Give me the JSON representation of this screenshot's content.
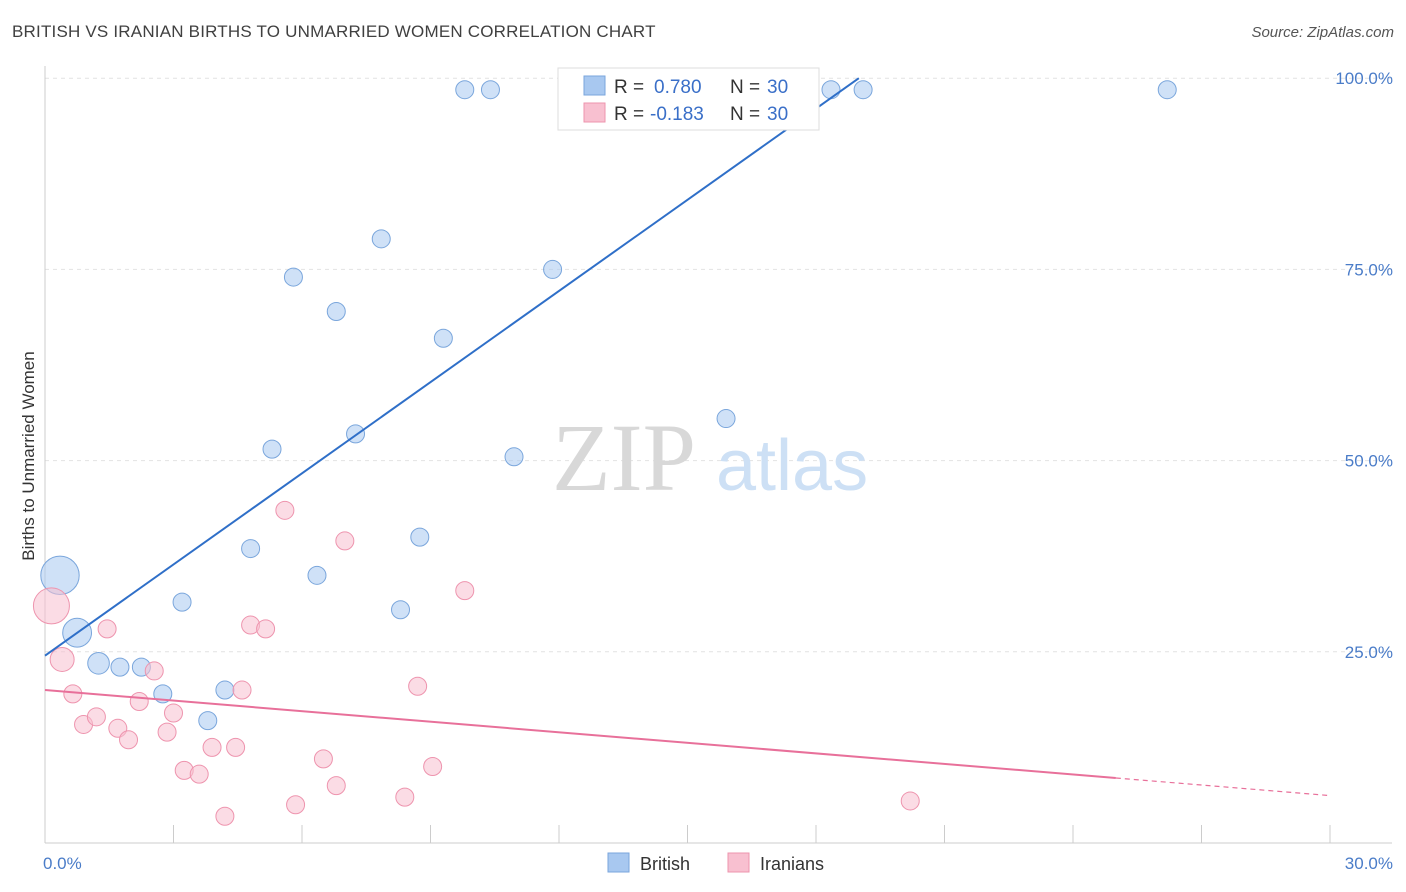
{
  "title": "BRITISH VS IRANIAN BIRTHS TO UNMARRIED WOMEN CORRELATION CHART",
  "source": "Source: ZipAtlas.com",
  "watermark": {
    "zip": "ZIP",
    "atlas": "atlas"
  },
  "chart_data": {
    "type": "scatter",
    "title": "BRITISH VS IRANIAN BIRTHS TO UNMARRIED WOMEN CORRELATION CHART",
    "xlabel": "",
    "ylabel": "Births to Unmarried Women",
    "xlim": [
      0,
      30
    ],
    "ylim": [
      0,
      105
    ],
    "x_tick_labels": [
      "0.0%",
      "30.0%"
    ],
    "y_ticks": [
      25,
      50,
      75,
      100
    ],
    "y_tick_labels": [
      "25.0%",
      "50.0%",
      "75.0%",
      "100.0%"
    ],
    "grid": true,
    "legend_placement": "top-center",
    "series": [
      {
        "name": "British",
        "color": "#a8c8f0",
        "edge_color": "#7aa6dc",
        "line_color": "#2f6fc8",
        "r_label": "R = ",
        "r_value": "0.780",
        "n_label": "N = ",
        "n_value": "30",
        "trend": {
          "x0": 0.0,
          "y0": 24.5,
          "x1": 19.0,
          "y1": 100.0
        },
        "points": [
          {
            "x": 0.35,
            "y": 35.0,
            "size": 3.2
          },
          {
            "x": 0.75,
            "y": 27.5,
            "size": 2.4
          },
          {
            "x": 1.25,
            "y": 23.5,
            "size": 1.8
          },
          {
            "x": 1.75,
            "y": 23.0,
            "size": 1.5
          },
          {
            "x": 2.25,
            "y": 23.0,
            "size": 1.5
          },
          {
            "x": 2.75,
            "y": 19.5,
            "size": 1.5
          },
          {
            "x": 3.2,
            "y": 31.5,
            "size": 1.5
          },
          {
            "x": 3.8,
            "y": 16.0,
            "size": 1.5
          },
          {
            "x": 4.2,
            "y": 20.0,
            "size": 1.5
          },
          {
            "x": 4.8,
            "y": 38.5,
            "size": 1.5
          },
          {
            "x": 5.3,
            "y": 51.5,
            "size": 1.5
          },
          {
            "x": 5.8,
            "y": 74.0,
            "size": 1.5
          },
          {
            "x": 6.35,
            "y": 35.0,
            "size": 1.5
          },
          {
            "x": 6.8,
            "y": 69.5,
            "size": 1.5
          },
          {
            "x": 7.25,
            "y": 53.5,
            "size": 1.5
          },
          {
            "x": 7.85,
            "y": 79.0,
            "size": 1.5
          },
          {
            "x": 8.3,
            "y": 30.5,
            "size": 1.5
          },
          {
            "x": 8.75,
            "y": 40.0,
            "size": 1.5
          },
          {
            "x": 9.3,
            "y": 66.0,
            "size": 1.5
          },
          {
            "x": 9.8,
            "y": 98.5,
            "size": 1.5
          },
          {
            "x": 10.4,
            "y": 98.5,
            "size": 1.5
          },
          {
            "x": 10.95,
            "y": 50.5,
            "size": 1.5
          },
          {
            "x": 11.85,
            "y": 75.0,
            "size": 1.5
          },
          {
            "x": 12.5,
            "y": 98.5,
            "size": 1.5
          },
          {
            "x": 13.0,
            "y": 98.5,
            "size": 1.5
          },
          {
            "x": 14.35,
            "y": 98.5,
            "size": 1.5
          },
          {
            "x": 15.9,
            "y": 55.5,
            "size": 1.5
          },
          {
            "x": 18.35,
            "y": 98.5,
            "size": 1.5
          },
          {
            "x": 19.1,
            "y": 98.5,
            "size": 1.5
          },
          {
            "x": 26.2,
            "y": 98.5,
            "size": 1.5
          }
        ]
      },
      {
        "name": "Iranians",
        "color": "#f8c0d0",
        "edge_color": "#ee94ae",
        "line_color": "#e8709a",
        "r_label": "R = ",
        "r_value": "-0.183",
        "n_label": "N = ",
        "n_value": "30",
        "trend": {
          "x0": 0.0,
          "y0": 20.0,
          "x1": 25.0,
          "y1": 8.5
        },
        "trend_dashed": {
          "x0": 25.0,
          "y0": 8.5,
          "x1": 30.0,
          "y1": 6.2
        },
        "points": [
          {
            "x": 0.15,
            "y": 31.0,
            "size": 3.0
          },
          {
            "x": 0.4,
            "y": 24.0,
            "size": 2.0
          },
          {
            "x": 0.65,
            "y": 19.5,
            "size": 1.5
          },
          {
            "x": 0.9,
            "y": 15.5,
            "size": 1.5
          },
          {
            "x": 1.2,
            "y": 16.5,
            "size": 1.5
          },
          {
            "x": 1.45,
            "y": 28.0,
            "size": 1.5
          },
          {
            "x": 1.7,
            "y": 15.0,
            "size": 1.5
          },
          {
            "x": 1.95,
            "y": 13.5,
            "size": 1.5
          },
          {
            "x": 2.2,
            "y": 18.5,
            "size": 1.5
          },
          {
            "x": 2.55,
            "y": 22.5,
            "size": 1.5
          },
          {
            "x": 2.85,
            "y": 14.5,
            "size": 1.5
          },
          {
            "x": 3.0,
            "y": 17.0,
            "size": 1.5
          },
          {
            "x": 3.25,
            "y": 9.5,
            "size": 1.5
          },
          {
            "x": 3.6,
            "y": 9.0,
            "size": 1.5
          },
          {
            "x": 3.9,
            "y": 12.5,
            "size": 1.5
          },
          {
            "x": 4.2,
            "y": 3.5,
            "size": 1.5
          },
          {
            "x": 4.45,
            "y": 12.5,
            "size": 1.5
          },
          {
            "x": 4.6,
            "y": 20.0,
            "size": 1.5
          },
          {
            "x": 4.8,
            "y": 28.5,
            "size": 1.5
          },
          {
            "x": 5.15,
            "y": 28.0,
            "size": 1.5
          },
          {
            "x": 5.6,
            "y": 43.5,
            "size": 1.5
          },
          {
            "x": 5.85,
            "y": 5.0,
            "size": 1.5
          },
          {
            "x": 6.5,
            "y": 11.0,
            "size": 1.5
          },
          {
            "x": 6.8,
            "y": 7.5,
            "size": 1.5
          },
          {
            "x": 7.0,
            "y": 39.5,
            "size": 1.5
          },
          {
            "x": 8.4,
            "y": 6.0,
            "size": 1.5
          },
          {
            "x": 8.7,
            "y": 20.5,
            "size": 1.5
          },
          {
            "x": 9.05,
            "y": 10.0,
            "size": 1.5
          },
          {
            "x": 9.8,
            "y": 33.0,
            "size": 1.5
          },
          {
            "x": 20.2,
            "y": 5.5,
            "size": 1.5
          }
        ]
      }
    ]
  }
}
